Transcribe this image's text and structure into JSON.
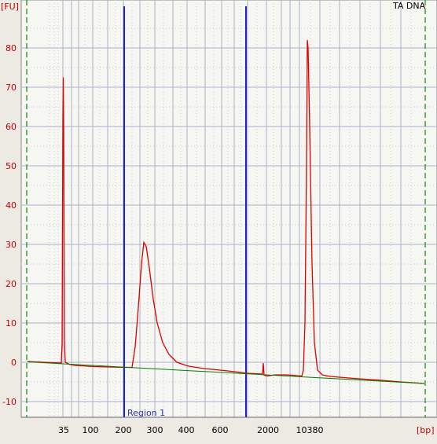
{
  "chart_data": {
    "type": "line",
    "title": "TA DNA",
    "y_unit_label": "[FU]",
    "x_unit_label": "[bp]",
    "ylim": [
      -12,
      91
    ],
    "y_ticks": [
      -10,
      0,
      10,
      20,
      30,
      40,
      50,
      60,
      70,
      80
    ],
    "x_tick_labels": [
      "35",
      "100",
      "200",
      "300",
      "400",
      "600",
      "2000",
      "10380"
    ],
    "region_label": "Region 1",
    "grid": true,
    "series": [
      {
        "color": "#E00000",
        "points": [
          [
            35,
            0.2
          ],
          [
            78,
            -0.2
          ],
          [
            79,
            5
          ],
          [
            80,
            63
          ],
          [
            80.5,
            72.5
          ],
          [
            81,
            60
          ],
          [
            82,
            5
          ],
          [
            83,
            0
          ],
          [
            88,
            -0.5
          ],
          [
            95,
            -0.8
          ],
          [
            120,
            -1.1
          ],
          [
            160,
            -1.3
          ],
          [
            168,
            -1.3
          ],
          [
            172,
            4
          ],
          [
            176,
            14
          ],
          [
            180,
            25
          ],
          [
            183,
            30.5
          ],
          [
            186,
            29.5
          ],
          [
            190,
            24
          ],
          [
            195,
            16
          ],
          [
            200,
            10
          ],
          [
            207,
            5
          ],
          [
            215,
            2
          ],
          [
            225,
            0
          ],
          [
            240,
            -1
          ],
          [
            260,
            -1.6
          ],
          [
            290,
            -2.2
          ],
          [
            315,
            -2.8
          ],
          [
            334,
            -3
          ],
          [
            335,
            -0.2
          ],
          [
            336,
            -3.3
          ],
          [
            340,
            -3.5
          ],
          [
            350,
            -3.2
          ],
          [
            365,
            -3.2
          ],
          [
            384,
            -3.5
          ],
          [
            386,
            -2
          ],
          [
            388,
            10
          ],
          [
            390,
            50
          ],
          [
            391,
            82
          ],
          [
            392,
            80
          ],
          [
            394,
            60
          ],
          [
            397,
            25
          ],
          [
            400,
            5
          ],
          [
            404,
            -2
          ],
          [
            410,
            -3.2
          ],
          [
            420,
            -3.6
          ],
          [
            450,
            -4.1
          ],
          [
            480,
            -4.5
          ],
          [
            510,
            -5
          ],
          [
            540,
            -5.4
          ]
        ]
      },
      {
        "color": "#008000",
        "points": [
          [
            35,
            0.1
          ],
          [
            540,
            -5.4
          ]
        ]
      }
    ]
  }
}
